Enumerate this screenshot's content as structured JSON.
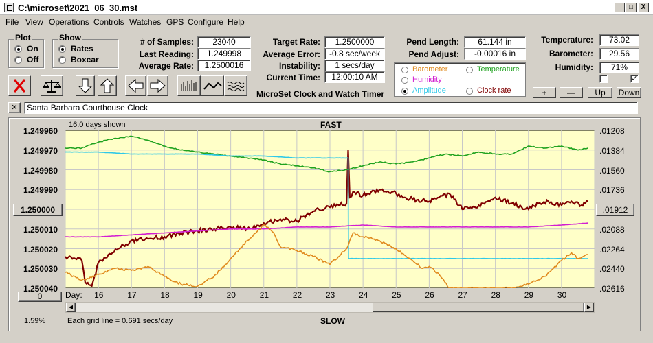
{
  "window": {
    "title": "C:\\microset\\2021_06_30.mst",
    "minimize": "_",
    "maximize": "□",
    "close": "X"
  },
  "menu": [
    "File",
    "View",
    "Operations",
    "Controls",
    "Watches",
    "GPS",
    "Configure",
    "Help"
  ],
  "plot_group": {
    "label": "Plot",
    "options": [
      "On",
      "Off"
    ],
    "selected": "On"
  },
  "show_group": {
    "label": "Show",
    "options": [
      "Rates",
      "Boxcar"
    ],
    "selected": "Rates"
  },
  "stats": {
    "samples_label": "# of Samples:",
    "samples": "23040",
    "last_label": "Last Reading:",
    "last": "1.249998",
    "avg_label": "Average Rate:",
    "avg": "1.2500016",
    "target_label": "Target Rate:",
    "target": "1.2500000",
    "avg_err_label": "Average Error:",
    "avg_err": "-0.8 sec/week",
    "instab_label": "Instability:",
    "instab": "1 secs/day",
    "time_label": "Current Time:",
    "time": "12:00:10 AM",
    "pend_len_label": "Pend Length:",
    "pend_len": "61.144 in",
    "pend_adj_label": "Pend Adjust:",
    "pend_adj": "-0.00016 in",
    "temp_label": "Temperature:",
    "temp": "73.02",
    "baro_label": "Barometer:",
    "baro": "29.56",
    "hum_label": "Humidity:",
    "hum": "71%"
  },
  "app_subtitle": "MicroSet Clock and Watch Timer",
  "legend": {
    "items": [
      {
        "label": "Barometer",
        "color": "#e08a1e",
        "selected": false
      },
      {
        "label": "Temperature",
        "color": "#1fa21f",
        "selected": false
      },
      {
        "label": "Humidity",
        "color": "#d21fd2",
        "selected": false
      },
      {
        "label": "Amplitude",
        "color": "#2ec8e8",
        "selected": true
      },
      {
        "label": "Clock rate",
        "color": "#800000",
        "selected": false
      }
    ]
  },
  "scale_buttons": [
    "+",
    "—",
    "Up",
    "Down"
  ],
  "checkboxes": [
    false,
    true
  ],
  "toolbar_icons": [
    "clear-icon",
    "balance-icon",
    "arrow-down-icon",
    "arrow-up-icon",
    "arrow-left-icon",
    "arrow-right-icon",
    "bars-plot-icon",
    "line-plot-icon",
    "wave-plot-icon"
  ],
  "clock_name": "Santa Barbara Courthouse Clock",
  "close_x": "✕",
  "plot": {
    "days_shown": "16.0 days shown",
    "top_label": "FAST",
    "bottom_label": "SLOW",
    "grid_note": "Each grid line = 0.691 secs/day",
    "percent": "1.59%",
    "center_left": "1.250000",
    "center_right": ".01912",
    "scroll_value": "0",
    "day_label": "Day:",
    "left_ticks": [
      "1.249960",
      "1.249970",
      "1.249980",
      "1.249990",
      "1.250000",
      "1.250010",
      "1.250020",
      "1.250030",
      "1.250040"
    ],
    "right_ticks": [
      ".01208",
      ".01384",
      ".01560",
      ".01736",
      ".01912",
      ".02088",
      ".02264",
      ".02440",
      ".02616"
    ],
    "day_ticks": [
      "16",
      "17",
      "18",
      "19",
      "20",
      "21",
      "22",
      "23",
      "24",
      "25",
      "26",
      "27",
      "28",
      "29",
      "30"
    ]
  },
  "chart_data": {
    "type": "line",
    "title": "",
    "xlabel": "Day:",
    "ylabel": "",
    "xlim": [
      15.0,
      31.0
    ],
    "ylim": [
      1.24996,
      1.25004
    ],
    "y_inverted": true,
    "grid": true,
    "series": [
      {
        "name": "Clock rate",
        "color": "#800000",
        "x": [
          15.0,
          15.3,
          15.5,
          15.6,
          15.8,
          16.0,
          16.3,
          16.6,
          17.0,
          17.5,
          18.0,
          18.5,
          19.0,
          19.5,
          20.0,
          20.5,
          21.0,
          21.5,
          22.0,
          22.5,
          23.0,
          23.3,
          23.5,
          23.55,
          23.6,
          23.7,
          24.0,
          24.5,
          25.0,
          25.5,
          26.0,
          26.3,
          26.6,
          27.0,
          27.5,
          28.0,
          28.5,
          29.0,
          29.3,
          29.6,
          30.0,
          30.3,
          30.6,
          30.8
        ],
        "y": [
          1.250024,
          1.250025,
          1.250026,
          1.250037,
          1.250039,
          1.250027,
          1.250023,
          1.25002,
          1.250016,
          1.250015,
          1.250014,
          1.250012,
          1.250011,
          1.25001,
          1.250009,
          1.25001,
          1.250007,
          1.250005,
          1.250006,
          1.250001,
          1.249999,
          1.249998,
          1.249997,
          1.24997,
          1.249994,
          1.249991,
          1.249993,
          1.24999,
          1.249992,
          1.249995,
          1.249996,
          1.249994,
          1.249992,
          1.25,
          1.249998,
          1.249994,
          1.249997,
          1.25,
          1.249997,
          1.249996,
          1.249998,
          1.249996,
          1.249998,
          1.249996
        ]
      },
      {
        "name": "Temperature",
        "color": "#1fa21f",
        "x": [
          15.0,
          15.5,
          16.0,
          16.5,
          17.0,
          17.5,
          18.0,
          18.5,
          19.0,
          19.5,
          20.0,
          20.5,
          21.0,
          21.5,
          22.0,
          22.5,
          23.0,
          23.5,
          24.0,
          24.5,
          25.0,
          25.5,
          26.0,
          26.5,
          27.0,
          27.5,
          28.0,
          28.5,
          29.0,
          29.5,
          30.0,
          30.5,
          30.8
        ],
        "y": [
          1.249969,
          1.249969,
          1.249966,
          1.249964,
          1.249963,
          1.249965,
          1.249968,
          1.24997,
          1.249971,
          1.249972,
          1.249973,
          1.249974,
          1.249975,
          1.249977,
          1.249978,
          1.249979,
          1.249981,
          1.24998,
          1.249978,
          1.249976,
          1.249977,
          1.249976,
          1.249974,
          1.249972,
          1.249973,
          1.249971,
          1.249972,
          1.249972,
          1.249968,
          1.249969,
          1.249968,
          1.24997,
          1.249969
        ]
      },
      {
        "name": "Amplitude",
        "color": "#2ec8e8",
        "x": [
          15.0,
          16.0,
          17.0,
          18.0,
          19.0,
          20.0,
          21.0,
          22.0,
          23.0,
          23.55,
          23.56,
          24.0,
          25.0,
          26.0,
          27.0,
          28.0,
          29.0,
          30.0,
          30.8
        ],
        "y": [
          1.249971,
          1.249971,
          1.249972,
          1.249972,
          1.249972,
          1.249973,
          1.249973,
          1.249974,
          1.249974,
          1.249974,
          1.250025,
          1.250025,
          1.250025,
          1.250025,
          1.250025,
          1.250025,
          1.250025,
          1.250025,
          1.250025
        ]
      },
      {
        "name": "Humidity",
        "color": "#d21fd2",
        "x": [
          15.0,
          16.0,
          17.0,
          18.0,
          19.0,
          20.0,
          21.0,
          22.0,
          23.0,
          24.0,
          25.0,
          26.0,
          27.0,
          28.0,
          29.0,
          30.0,
          30.8
        ],
        "y": [
          1.250014,
          1.250014,
          1.250013,
          1.250012,
          1.250011,
          1.25001,
          1.25001,
          1.250009,
          1.250009,
          1.250008,
          1.250009,
          1.250009,
          1.250009,
          1.250009,
          1.250009,
          1.250008,
          1.250007
        ]
      },
      {
        "name": "Barometer",
        "color": "#e08a1e",
        "x": [
          15.0,
          15.5,
          16.0,
          16.5,
          17.0,
          17.5,
          18.0,
          18.5,
          19.0,
          19.5,
          20.0,
          20.5,
          21.0,
          21.3,
          21.5,
          22.0,
          22.5,
          23.0,
          23.5,
          23.7,
          24.0,
          24.5,
          25.0,
          25.5,
          25.8,
          26.0,
          26.3,
          26.6,
          27.0,
          28.0,
          28.5,
          29.0,
          29.5,
          30.0,
          30.3,
          30.5,
          30.8
        ],
        "y": [
          1.250032,
          1.250036,
          1.250033,
          1.25003,
          1.250031,
          1.250029,
          1.250034,
          1.250038,
          1.250039,
          1.250034,
          1.250025,
          1.250016,
          1.250008,
          1.250012,
          1.250019,
          1.250021,
          1.250024,
          1.250028,
          1.25002,
          1.250012,
          1.250014,
          1.250016,
          1.25002,
          1.250026,
          1.25003,
          1.250029,
          1.250033,
          1.25004,
          1.25004,
          1.25004,
          1.25004,
          1.250038,
          1.250034,
          1.250026,
          1.250022,
          1.250025,
          1.250023
        ]
      }
    ]
  }
}
